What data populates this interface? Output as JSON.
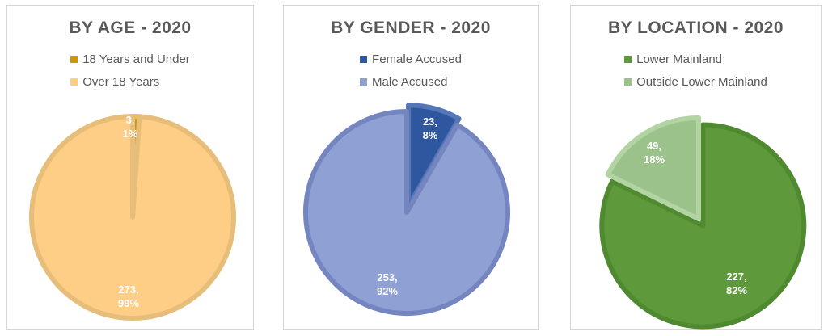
{
  "chart_data": [
    {
      "type": "pie",
      "title": "BY AGE - 2020",
      "legend_position": "top",
      "series": [
        {
          "name": "18 Years and Under",
          "value": 3,
          "label": "3,",
          "percent_label": "1%",
          "color": "#c99a06",
          "edge": "#e7bd5a"
        },
        {
          "name": "Over 18 Years",
          "value": 273,
          "label": "273,",
          "percent_label": "99%",
          "color": "#fece86",
          "edge": "#e6be7a"
        }
      ]
    },
    {
      "type": "pie",
      "title": "BY GENDER - 2020",
      "legend_position": "top",
      "series": [
        {
          "name": "Female Accused",
          "value": 23,
          "label": "23,",
          "percent_label": "8%",
          "color": "#2f57a0",
          "edge": "#5577b8"
        },
        {
          "name": "Male Accused",
          "value": 253,
          "label": "253,",
          "percent_label": "92%",
          "color": "#8ea0d4",
          "edge": "#7485c0"
        }
      ]
    },
    {
      "type": "pie",
      "title": "BY LOCATION - 2020",
      "legend_position": "top",
      "series": [
        {
          "name": "Lower Mainland",
          "value": 227,
          "label": "227,",
          "percent_label": "82%",
          "color": "#5e9a3b",
          "edge": "#4f8a30"
        },
        {
          "name": "Outside Lower Mainland",
          "value": 49,
          "label": "49,",
          "percent_label": "18%",
          "color": "#9bc28a",
          "edge": "#b2d3a2"
        }
      ]
    }
  ]
}
